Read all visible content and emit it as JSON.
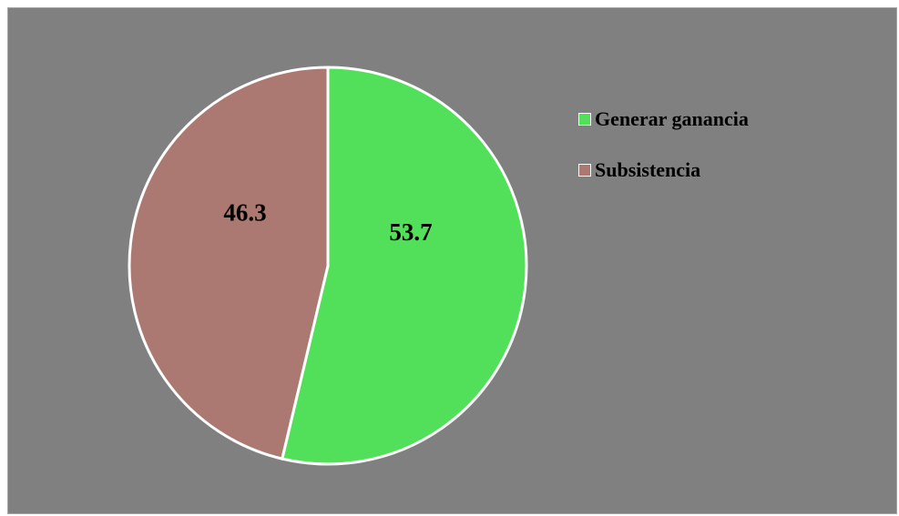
{
  "chart_data": {
    "type": "pie",
    "title": "",
    "categories": [
      "Generar ganancia",
      "Subsistencia"
    ],
    "values": [
      53.7,
      46.3
    ],
    "data_labels": [
      "53.7",
      "46.3"
    ],
    "colors": [
      "#52e05a",
      "#ab7972"
    ],
    "start_angle_deg": 0,
    "direction": "clockwise",
    "legend_position": "right",
    "background_color": "#808080",
    "slice_border_color": "#ffffff"
  }
}
